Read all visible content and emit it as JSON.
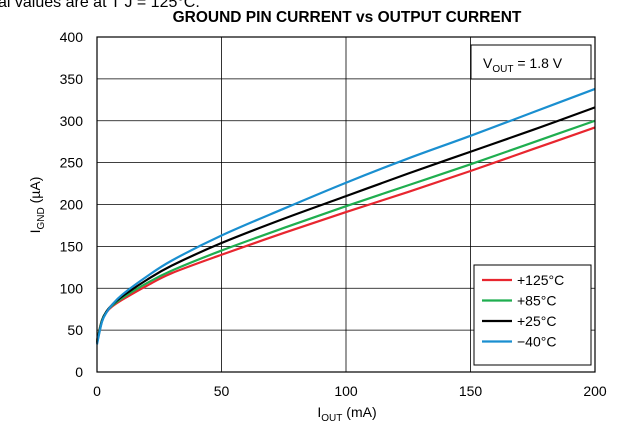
{
  "chart_data": {
    "type": "line",
    "top_cropped_text": "al values are at T",
    "top_cropped_text_tail": "J = 125°C.",
    "title": "GROUND PIN CURRENT vs OUTPUT CURRENT",
    "xlabel": {
      "main": "I",
      "sub": "OUT",
      "unit": " (mA)"
    },
    "ylabel": {
      "main": "I",
      "sub": "GND",
      "unit": " (µA)"
    },
    "annotation": {
      "main": "V",
      "sub": "OUT",
      "rest": " = 1.8 V"
    },
    "xlim": [
      0,
      200
    ],
    "ylim": [
      0,
      400
    ],
    "xticks": [
      0,
      50,
      100,
      150,
      200
    ],
    "yticks": [
      0,
      50,
      100,
      150,
      200,
      250,
      300,
      350,
      400
    ],
    "grid": true,
    "legend_position": "bottom-right",
    "series": [
      {
        "name": "+125°C",
        "color": "#e8262f",
        "points": [
          [
            0,
            38
          ],
          [
            2,
            62
          ],
          [
            4,
            72
          ],
          [
            6,
            78
          ],
          [
            10,
            86
          ],
          [
            20,
            103
          ],
          [
            30,
            118
          ],
          [
            50,
            140
          ],
          [
            75,
            166
          ],
          [
            100,
            191
          ],
          [
            125,
            215
          ],
          [
            150,
            240
          ],
          [
            175,
            266
          ],
          [
            200,
            292
          ]
        ]
      },
      {
        "name": "+85°C",
        "color": "#1fae4f",
        "points": [
          [
            0,
            37
          ],
          [
            2,
            62
          ],
          [
            4,
            73
          ],
          [
            6,
            79
          ],
          [
            10,
            88
          ],
          [
            20,
            106
          ],
          [
            30,
            121
          ],
          [
            50,
            145
          ],
          [
            75,
            172
          ],
          [
            100,
            198
          ],
          [
            125,
            223
          ],
          [
            150,
            248
          ],
          [
            175,
            274
          ],
          [
            200,
            300
          ]
        ]
      },
      {
        "name": "+25°C",
        "color": "#000000",
        "points": [
          [
            0,
            35
          ],
          [
            2,
            61
          ],
          [
            4,
            73
          ],
          [
            6,
            80
          ],
          [
            10,
            90
          ],
          [
            20,
            110
          ],
          [
            30,
            127
          ],
          [
            50,
            154
          ],
          [
            75,
            183
          ],
          [
            100,
            210
          ],
          [
            125,
            237
          ],
          [
            150,
            263
          ],
          [
            175,
            289
          ],
          [
            200,
            316
          ]
        ]
      },
      {
        "name": "−40°C",
        "color": "#1a8fd0",
        "points": [
          [
            0,
            33
          ],
          [
            2,
            60
          ],
          [
            4,
            72
          ],
          [
            6,
            80
          ],
          [
            10,
            92
          ],
          [
            20,
            114
          ],
          [
            30,
            133
          ],
          [
            50,
            163
          ],
          [
            75,
            195
          ],
          [
            100,
            226
          ],
          [
            125,
            255
          ],
          [
            150,
            282
          ],
          [
            175,
            310
          ],
          [
            200,
            338
          ]
        ]
      }
    ]
  }
}
